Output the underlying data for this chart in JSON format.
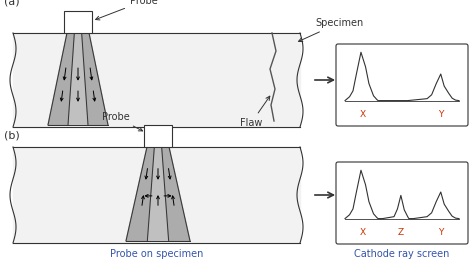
{
  "fig_label_a": "(a)",
  "fig_label_b": "(b)",
  "probe_label": "Probe",
  "specimen_label": "Specimen",
  "flaw_label": "Flaw",
  "probe_on_specimen": "Probe on specimen",
  "cathode_ray_screen": "Cathode ray screen",
  "bg_color": "#ffffff",
  "gray_fill": "#c0c0c0",
  "dark_gray_fill": "#999999",
  "dark_line": "#333333",
  "text_color": "#333333",
  "blue_text": "#3355aa",
  "arrow_color": "#333333",
  "label_color_xy": "#cc3300"
}
